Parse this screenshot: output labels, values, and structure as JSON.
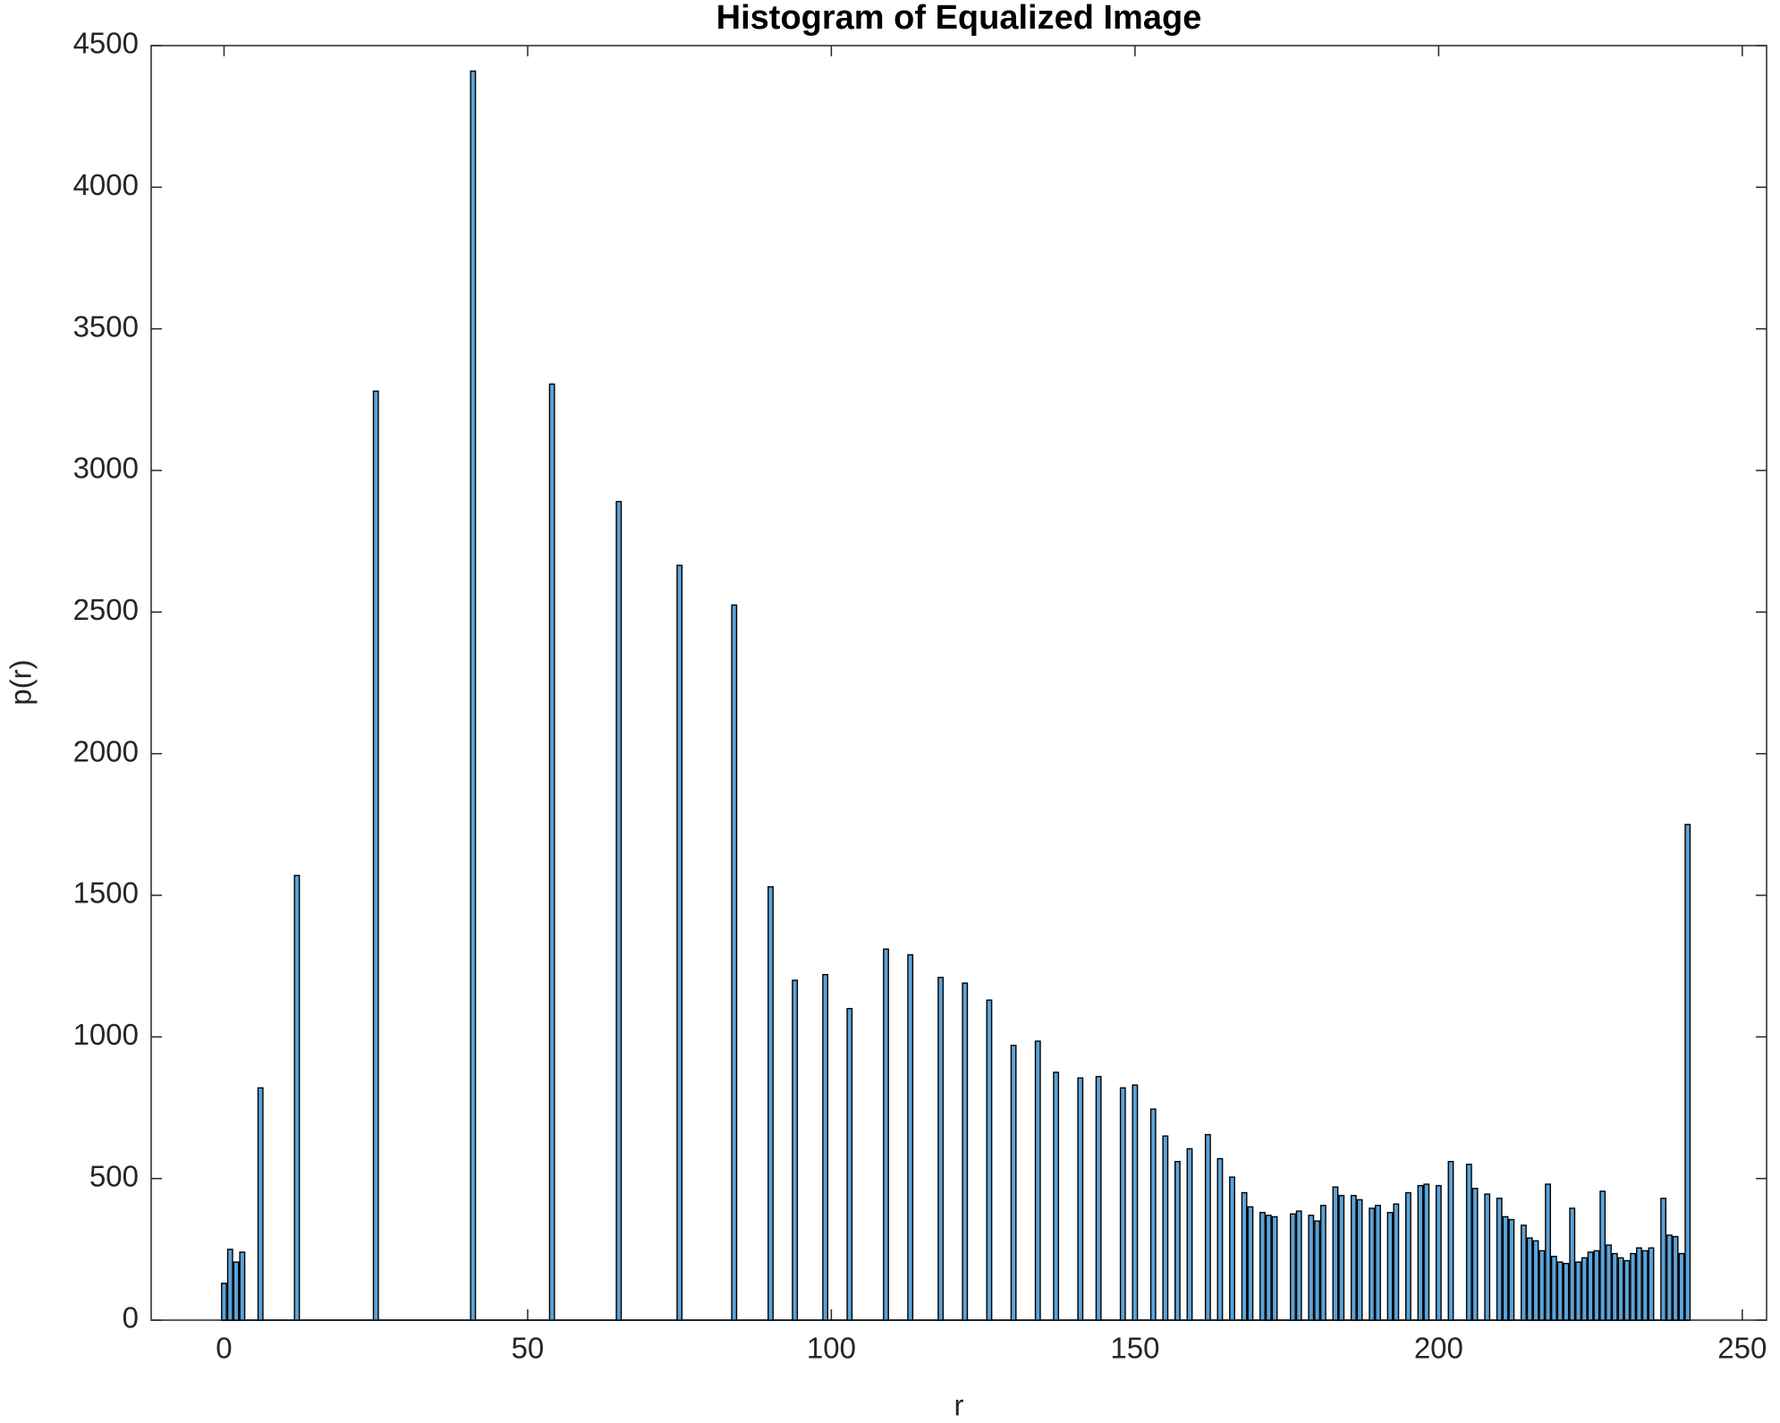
{
  "chart_data": {
    "type": "bar",
    "title": "Histogram of Equalized Image",
    "xlabel": "r",
    "ylabel": "p(r)",
    "x": [
      0,
      1,
      2,
      3,
      6,
      12,
      25,
      41,
      54,
      65,
      75,
      84,
      90,
      94,
      99,
      103,
      109,
      113,
      118,
      122,
      126,
      130,
      134,
      137,
      141,
      144,
      148,
      150,
      153,
      155,
      157,
      159,
      162,
      164,
      166,
      168,
      169,
      171,
      172,
      173,
      176,
      177,
      179,
      180,
      181,
      183,
      184,
      186,
      187,
      189,
      190,
      192,
      193,
      195,
      197,
      198,
      200,
      202,
      205,
      206,
      208,
      210,
      211,
      212,
      214,
      215,
      216,
      217,
      218,
      219,
      220,
      221,
      222,
      223,
      224,
      225,
      226,
      227,
      228,
      229,
      230,
      231,
      232,
      233,
      234,
      235,
      237,
      238,
      239,
      240,
      241
    ],
    "values": [
      130,
      250,
      205,
      240,
      820,
      1570,
      3280,
      4410,
      3305,
      2890,
      2665,
      2525,
      1530,
      1200,
      1220,
      1100,
      1310,
      1290,
      1210,
      1190,
      1130,
      970,
      985,
      875,
      855,
      860,
      820,
      830,
      745,
      650,
      560,
      605,
      655,
      570,
      505,
      450,
      400,
      380,
      370,
      365,
      375,
      385,
      370,
      350,
      405,
      470,
      440,
      440,
      425,
      395,
      405,
      380,
      410,
      450,
      475,
      480,
      475,
      560,
      550,
      465,
      445,
      430,
      365,
      355,
      335,
      290,
      280,
      245,
      480,
      225,
      205,
      200,
      395,
      205,
      220,
      240,
      245,
      455,
      265,
      235,
      220,
      210,
      235,
      255,
      245,
      255,
      430,
      300,
      295,
      235,
      1750
    ],
    "color": "#5ba3d9",
    "xlim": [
      -12,
      254
    ],
    "xticks": [
      0,
      50,
      100,
      150,
      200,
      250
    ],
    "ylim": [
      0,
      4500
    ],
    "yticks": [
      0,
      500,
      1000,
      1500,
      2000,
      2500,
      3000,
      3500,
      4000,
      4500
    ]
  }
}
